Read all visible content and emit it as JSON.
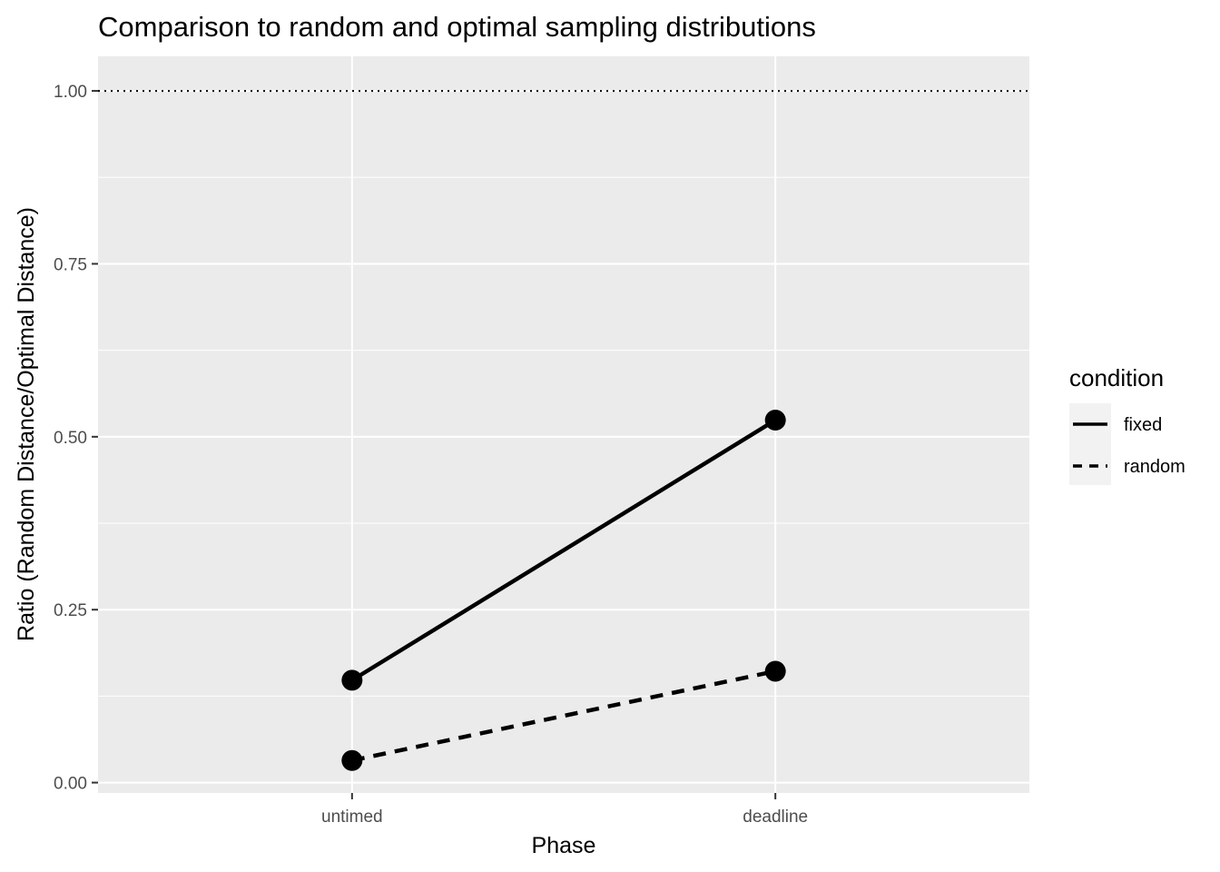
{
  "chart_data": {
    "type": "line",
    "title": "Comparison to random and optimal sampling distributions",
    "xlabel": "Phase",
    "ylabel": "Ratio (Random Distance/Optimal Distance)",
    "categories": [
      "untimed",
      "deadline"
    ],
    "y_ticks": [
      "0.00",
      "0.25",
      "0.50",
      "0.75",
      "1.00"
    ],
    "ylim": [
      -0.015,
      1.05
    ],
    "reference_line": {
      "y": 1.0,
      "style": "dotted"
    },
    "legend": {
      "title": "condition",
      "position": "right"
    },
    "series": [
      {
        "name": "fixed",
        "line_style": "solid",
        "values": [
          0.148,
          0.524
        ]
      },
      {
        "name": "random",
        "line_style": "dashed",
        "values": [
          0.032,
          0.161
        ]
      }
    ],
    "grid": true
  }
}
